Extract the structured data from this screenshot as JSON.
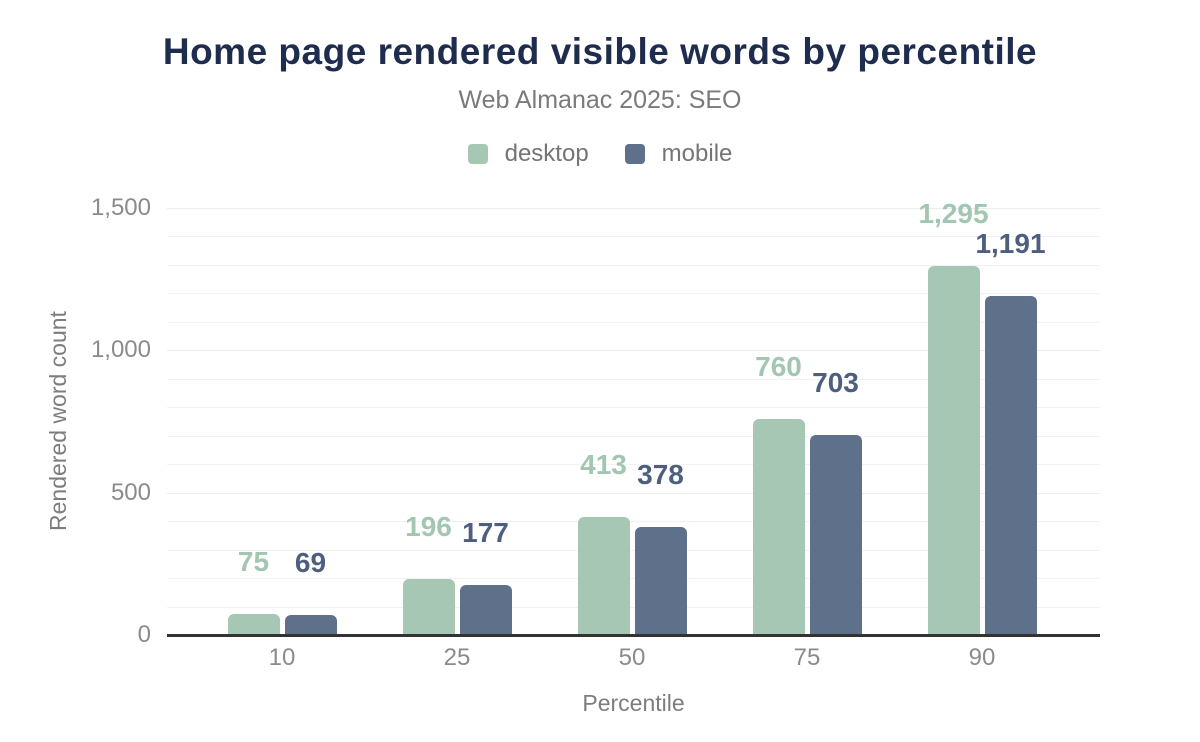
{
  "header": {
    "title": "Home page rendered visible words by percentile",
    "subtitle": "Web Almanac 2025: SEO"
  },
  "colors": {
    "title_text": "#1e2c4d",
    "subtitle_text": "#7a7a7a",
    "axis_text": "#8b8b8b",
    "axis_title_text": "#7d7d7d",
    "baseline": "#333333",
    "gridline": "#efefef",
    "desktop": "#a6c7b4",
    "mobile": "#5f708b",
    "desktop_label": "#a3c6b1",
    "mobile_label": "#4d5e7e"
  },
  "chart_data": {
    "type": "bar",
    "title": "Home page rendered visible words by percentile",
    "subtitle": "Web Almanac 2025: SEO",
    "categories": [
      "10",
      "25",
      "50",
      "75",
      "90"
    ],
    "series": [
      {
        "name": "desktop",
        "color": "#a6c7b4",
        "label_color": "#a3c6b1",
        "values": [
          75,
          196,
          413,
          760,
          1295
        ]
      },
      {
        "name": "mobile",
        "color": "#5f708b",
        "label_color": "#4d5e7e",
        "values": [
          69,
          177,
          378,
          703,
          1191
        ]
      }
    ],
    "xlabel": "Percentile",
    "ylabel": "Rendered word count",
    "ylim": [
      0,
      1500
    ],
    "ytick_step": 500,
    "minor_grid_step": 100,
    "y_tick_labels": [
      "0",
      "500",
      "1,000",
      "1,500"
    ],
    "grid": true,
    "legend_position": "top",
    "data_labels": true,
    "data_label_format": "thousands-comma"
  }
}
